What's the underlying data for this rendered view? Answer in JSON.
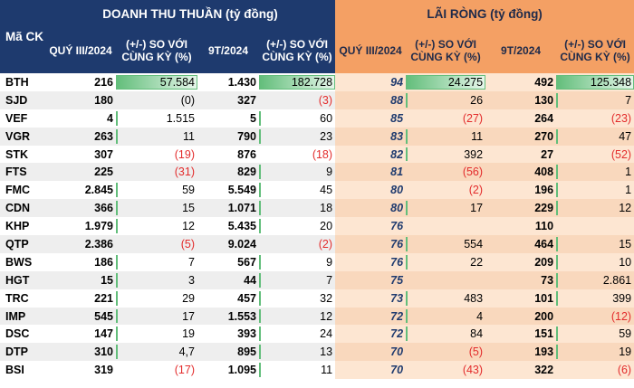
{
  "headers": {
    "code": "Mã CK",
    "revenue_group": "DOANH THU THUẦN (tỷ đồng)",
    "profit_group": "LÃI RÒNG (tỷ đồng)",
    "rev_q3": "QUÝ III/2024",
    "rev_q3_chg": "(+/-) SO VỚI CÙNG KỲ (%)",
    "rev_9m": "9T/2024",
    "rev_9m_chg": "(+/-) SO VỚI CÙNG KỲ (%)",
    "prof_q3": "QUÝ III/2024",
    "prof_q3_chg": "(+/-) SO VỚI CÙNG KỲ (%)",
    "prof_9m": "9T/2024",
    "prof_9m_chg": "(+/-) SO VỚI CÙNG KỲ (%)"
  },
  "colors": {
    "header_blue": "#1e3a6e",
    "header_orange": "#f4a064",
    "negative": "#e32c2c",
    "databar": "#63be7b"
  },
  "rows": [
    {
      "code": "BTH",
      "rev_q3": "216",
      "rev_q3_chg": "57.584",
      "rev_9m": "1.430",
      "rev_9m_chg": "182.728",
      "prof_q3": "94",
      "prof_q3_chg": "24.275",
      "prof_9m": "492",
      "prof_9m_chg": "125.348"
    },
    {
      "code": "SJD",
      "rev_q3": "180",
      "rev_q3_chg": "(0)",
      "rev_9m": "327",
      "rev_9m_chg": "(3)",
      "prof_q3": "88",
      "prof_q3_chg": "26",
      "prof_9m": "130",
      "prof_9m_chg": "7"
    },
    {
      "code": "VEF",
      "rev_q3": "4",
      "rev_q3_chg": "1.515",
      "rev_9m": "5",
      "rev_9m_chg": "60",
      "prof_q3": "85",
      "prof_q3_chg": "(27)",
      "prof_9m": "264",
      "prof_9m_chg": "(23)"
    },
    {
      "code": "VGR",
      "rev_q3": "263",
      "rev_q3_chg": "11",
      "rev_9m": "790",
      "rev_9m_chg": "23",
      "prof_q3": "83",
      "prof_q3_chg": "11",
      "prof_9m": "270",
      "prof_9m_chg": "47"
    },
    {
      "code": "STK",
      "rev_q3": "307",
      "rev_q3_chg": "(19)",
      "rev_9m": "876",
      "rev_9m_chg": "(18)",
      "prof_q3": "82",
      "prof_q3_chg": "392",
      "prof_9m": "27",
      "prof_9m_chg": "(52)"
    },
    {
      "code": "FTS",
      "rev_q3": "225",
      "rev_q3_chg": "(31)",
      "rev_9m": "829",
      "rev_9m_chg": "9",
      "prof_q3": "81",
      "prof_q3_chg": "(56)",
      "prof_9m": "408",
      "prof_9m_chg": "1"
    },
    {
      "code": "FMC",
      "rev_q3": "2.845",
      "rev_q3_chg": "59",
      "rev_9m": "5.549",
      "rev_9m_chg": "45",
      "prof_q3": "80",
      "prof_q3_chg": "(2)",
      "prof_9m": "196",
      "prof_9m_chg": "1"
    },
    {
      "code": "CDN",
      "rev_q3": "366",
      "rev_q3_chg": "15",
      "rev_9m": "1.071",
      "rev_9m_chg": "18",
      "prof_q3": "80",
      "prof_q3_chg": "17",
      "prof_9m": "229",
      "prof_9m_chg": "12"
    },
    {
      "code": "KHP",
      "rev_q3": "1.979",
      "rev_q3_chg": "12",
      "rev_9m": "5.435",
      "rev_9m_chg": "20",
      "prof_q3": "76",
      "prof_q3_chg": "",
      "prof_9m": "110",
      "prof_9m_chg": ""
    },
    {
      "code": "QTP",
      "rev_q3": "2.386",
      "rev_q3_chg": "(5)",
      "rev_9m": "9.024",
      "rev_9m_chg": "(2)",
      "prof_q3": "76",
      "prof_q3_chg": "554",
      "prof_9m": "464",
      "prof_9m_chg": "15"
    },
    {
      "code": "BWS",
      "rev_q3": "186",
      "rev_q3_chg": "7",
      "rev_9m": "567",
      "rev_9m_chg": "9",
      "prof_q3": "76",
      "prof_q3_chg": "22",
      "prof_9m": "209",
      "prof_9m_chg": "10"
    },
    {
      "code": "HGT",
      "rev_q3": "15",
      "rev_q3_chg": "3",
      "rev_9m": "44",
      "rev_9m_chg": "7",
      "prof_q3": "75",
      "prof_q3_chg": "",
      "prof_9m": "73",
      "prof_9m_chg": "2.861"
    },
    {
      "code": "TRC",
      "rev_q3": "221",
      "rev_q3_chg": "29",
      "rev_9m": "457",
      "rev_9m_chg": "32",
      "prof_q3": "73",
      "prof_q3_chg": "483",
      "prof_9m": "101",
      "prof_9m_chg": "399"
    },
    {
      "code": "IMP",
      "rev_q3": "545",
      "rev_q3_chg": "17",
      "rev_9m": "1.553",
      "rev_9m_chg": "12",
      "prof_q3": "72",
      "prof_q3_chg": "4",
      "prof_9m": "200",
      "prof_9m_chg": "(12)"
    },
    {
      "code": "DSC",
      "rev_q3": "147",
      "rev_q3_chg": "19",
      "rev_9m": "393",
      "rev_9m_chg": "24",
      "prof_q3": "72",
      "prof_q3_chg": "84",
      "prof_9m": "151",
      "prof_9m_chg": "59"
    },
    {
      "code": "DTP",
      "rev_q3": "310",
      "rev_q3_chg": "4,7",
      "rev_9m": "895",
      "rev_9m_chg": "13",
      "prof_q3": "70",
      "prof_q3_chg": "(5)",
      "prof_9m": "193",
      "prof_9m_chg": "19"
    },
    {
      "code": "BSI",
      "rev_q3": "319",
      "rev_q3_chg": "(17)",
      "rev_9m": "1.095",
      "rev_9m_chg": "11",
      "prof_q3": "70",
      "prof_q3_chg": "(43)",
      "prof_9m": "322",
      "prof_9m_chg": "(6)"
    }
  ]
}
